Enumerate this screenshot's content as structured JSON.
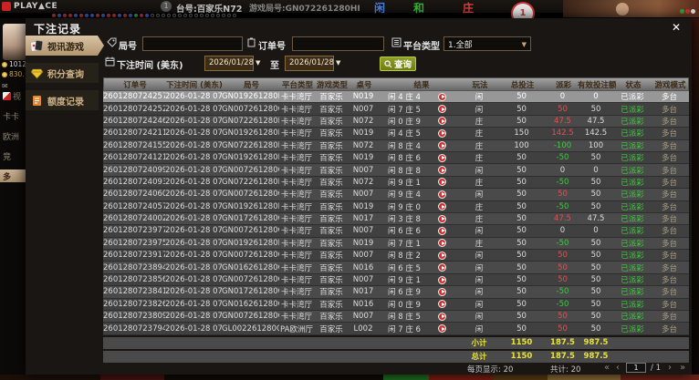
{
  "background": {
    "logo": "PLAY▲CE",
    "table_badge": "1",
    "table_label": "台号:百家乐N72",
    "round_label": "游戏局号:GN072261280HI",
    "bet_player": "闲",
    "bet_tie": "和",
    "bet_banker": "庄",
    "timer": "1",
    "balance1": "1012",
    "balance2": "830.",
    "mail_icon": "✉",
    "side_menu": [
      "视",
      "卡卡",
      "欧洲",
      "竞",
      "多"
    ],
    "beads": [
      "r",
      "b",
      "r",
      "r",
      "b",
      "r",
      "b",
      "b",
      "r",
      "b",
      "r",
      "r",
      "b",
      "r",
      "b",
      "g",
      "r",
      "b"
    ]
  },
  "modal": {
    "title": "下注记录",
    "close_icon": "✕",
    "sidebar": [
      {
        "label": "视讯游戏"
      },
      {
        "label": "积分查询"
      },
      {
        "label": "额度记录"
      }
    ],
    "filters": {
      "round_label": "局号",
      "round_value": "",
      "order_label": "订单号",
      "order_value": "",
      "platform_label": "平台类型",
      "platform_value": "1.全部",
      "time_label": "下注时间 (美东)",
      "date_from": "2026/01/28",
      "to_label": "至",
      "date_to": "2026/01/28",
      "search_label": "查询",
      "caret": "▼"
    },
    "table": {
      "headers": [
        "订单号",
        "下注时间 (美东)",
        "局号",
        "平台类型",
        "游戏类型",
        "桌号",
        "结果",
        "玩法",
        "总投注",
        "派彩",
        "有效投注额",
        "状态",
        "游戏模式"
      ],
      "rows": [
        [
          "260128072425795",
          "2026-01-28 07:28:34",
          "GN019261280I0",
          "卡卡湾厅",
          "百家乐",
          "N019",
          "闲 4 庄 4",
          "闲",
          "50",
          "0",
          "0",
          "已派彩",
          "多台"
        ],
        [
          "260128072425298",
          "2026-01-28 07:28:32",
          "GN007261280G8",
          "卡卡湾厅",
          "百家乐",
          "N007",
          "闲 7 庄 5",
          "闲",
          "50",
          "50",
          "50",
          "已派彩",
          "多台"
        ],
        [
          "260128072424600",
          "2026-01-28 07:28:29",
          "GN072261280HH",
          "卡卡湾厅",
          "百家乐",
          "N072",
          "闲 0 庄 9",
          "庄",
          "50",
          "47.5",
          "47.5",
          "已派彩",
          "多台"
        ],
        [
          "260128072421168",
          "2026-01-28 07:28:09",
          "GN019261280HZ",
          "卡卡湾厅",
          "百家乐",
          "N019",
          "闲 4 庄 5",
          "庄",
          "150",
          "142.5",
          "142.5",
          "已派彩",
          "多台"
        ],
        [
          "260128072415583",
          "2026-01-28 07:27:38",
          "GN072261280HG",
          "卡卡湾厅",
          "百家乐",
          "N072",
          "闲 8 庄 4",
          "庄",
          "100",
          "-100",
          "100",
          "已派彩",
          "多台"
        ],
        [
          "260128072412188",
          "2026-01-28 07:27:19",
          "GN019261280HY",
          "卡卡湾厅",
          "百家乐",
          "N019",
          "闲 8 庄 6",
          "庄",
          "50",
          "-50",
          "50",
          "已派彩",
          "多台"
        ],
        [
          "260128072409965",
          "2026-01-28 07:27:06",
          "GN007261280G6",
          "卡卡湾厅",
          "百家乐",
          "N007",
          "闲 8 庄 8",
          "闲",
          "50",
          "0",
          "0",
          "已派彩",
          "多台"
        ],
        [
          "260128072409307",
          "2026-01-28 07:27:02",
          "GN072261280HF",
          "卡卡湾厅",
          "百家乐",
          "N072",
          "闲 9 庄 1",
          "庄",
          "50",
          "-50",
          "50",
          "已派彩",
          "多台"
        ],
        [
          "260128072406048",
          "2026-01-28 07:26:44",
          "GN007261280G5",
          "卡卡湾厅",
          "百家乐",
          "N007",
          "闲 9 庄 4",
          "闲",
          "50",
          "50",
          "50",
          "已派彩",
          "多台"
        ],
        [
          "260128072405729",
          "2026-01-28 07:26:43",
          "GN019261280HX",
          "卡卡湾厅",
          "百家乐",
          "N019",
          "闲 9 庄 0",
          "庄",
          "50",
          "-50",
          "50",
          "已派彩",
          "多台"
        ],
        [
          "260128072400280",
          "2026-01-28 07:26:08",
          "GN017261280GT",
          "卡卡湾厅",
          "百家乐",
          "N017",
          "闲 3 庄 8",
          "庄",
          "50",
          "47.5",
          "47.5",
          "已派彩",
          "多台"
        ],
        [
          "260128072397764",
          "2026-01-28 07:25:57",
          "GN007261280G4",
          "卡卡湾厅",
          "百家乐",
          "N007",
          "闲 6 庄 6",
          "闲",
          "50",
          "0",
          "0",
          "已派彩",
          "多台"
        ],
        [
          "260128072397508",
          "2026-01-28 07:25:56",
          "GN019261280HW",
          "卡卡湾厅",
          "百家乐",
          "N019",
          "闲 7 庄 1",
          "庄",
          "50",
          "-50",
          "50",
          "已派彩",
          "多台"
        ],
        [
          "260128072391718",
          "2026-01-28 07:25:23",
          "GN007261280G3",
          "卡卡湾厅",
          "百家乐",
          "N007",
          "闲 8 庄 2",
          "闲",
          "50",
          "50",
          "50",
          "已派彩",
          "多台"
        ],
        [
          "260128072389458",
          "2026-01-28 07:25:06",
          "GN016261280GW",
          "卡卡湾厅",
          "百家乐",
          "N016",
          "闲 6 庄 5",
          "闲",
          "50",
          "50",
          "50",
          "已派彩",
          "多台"
        ],
        [
          "260128072385611",
          "2026-01-28 07:24:47",
          "GN007261280G2",
          "卡卡湾厅",
          "百家乐",
          "N007",
          "闲 9 庄 1",
          "闲",
          "50",
          "50",
          "50",
          "已派彩",
          "多台"
        ],
        [
          "260128072384186",
          "2026-01-28 07:24:38",
          "GN017261280GR",
          "卡卡湾厅",
          "百家乐",
          "N017",
          "闲 6 庄 9",
          "闲",
          "50",
          "-50",
          "50",
          "已派彩",
          "多台"
        ],
        [
          "260128072382637",
          "2026-01-28 07:24:30",
          "GN016261280GV",
          "卡卡湾厅",
          "百家乐",
          "N016",
          "闲 0 庄 9",
          "闲",
          "50",
          "-50",
          "50",
          "已派彩",
          "多台"
        ],
        [
          "260128072380906",
          "2026-01-28 07:24:22",
          "GN007261280G1",
          "卡卡湾厅",
          "百家乐",
          "N007",
          "闲 8 庄 5",
          "闲",
          "50",
          "50",
          "50",
          "已派彩",
          "多台"
        ],
        [
          "260128072379499",
          "2026-01-28 07:24:15",
          "GL002261280G1",
          "PA欧洲厅",
          "百家乐",
          "L002",
          "闲 7 庄 6",
          "闲",
          "50",
          "50",
          "50",
          "已派彩",
          "多台"
        ]
      ],
      "subtotal": {
        "label": "小计",
        "total_bet": "1150",
        "payout": "187.5",
        "valid_bet": "987.5"
      },
      "total": {
        "label": "总计",
        "total_bet": "1150",
        "payout": "187.5",
        "valid_bet": "987.5"
      }
    },
    "pagination": {
      "per_page_label": "每页显示: 20",
      "total_label": "共计: 20",
      "first": "«",
      "prev": "‹",
      "page": "1",
      "of": "/ 1",
      "next": "›",
      "last": "»"
    }
  },
  "colors": {
    "accent_tan": "#c7ab83",
    "win_red": "#e05050",
    "lose_green": "#3ecb3e",
    "total_yellow": "#e8e23a",
    "search_button_green": "#7c8d1d"
  }
}
